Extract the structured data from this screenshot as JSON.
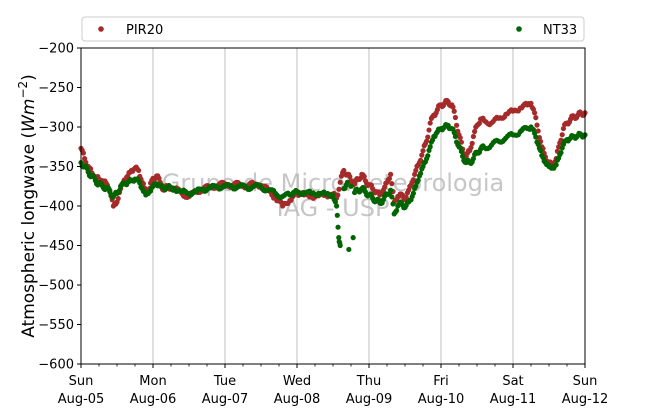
{
  "chart_data": {
    "type": "scatter",
    "ylabel": "Atmospheric longwave (Wm⁻²)",
    "ylim": [
      -600,
      -200
    ],
    "yticks": [
      -200,
      -250,
      -300,
      -350,
      -400,
      -450,
      -500,
      -550,
      -600
    ],
    "xlim": [
      0,
      7
    ],
    "xticks": [
      {
        "day": "Sun",
        "date": "Aug-05"
      },
      {
        "day": "Mon",
        "date": "Aug-06"
      },
      {
        "day": "Tue",
        "date": "Aug-07"
      },
      {
        "day": "Wed",
        "date": "Aug-08"
      },
      {
        "day": "Thu",
        "date": "Aug-09"
      },
      {
        "day": "Fri",
        "date": "Aug-10"
      },
      {
        "day": "Sat",
        "date": "Aug-11"
      },
      {
        "day": "Sun",
        "date": "Aug-12"
      }
    ],
    "grid": "x",
    "legend": "top",
    "watermark": [
      "Grupo de Micrometeorologia",
      "IAG - USP"
    ],
    "series": [
      {
        "name": "PIR20",
        "color": "#a52a2a",
        "points": [
          [
            0.0,
            -327
          ],
          [
            0.05,
            -340
          ],
          [
            0.1,
            -350
          ],
          [
            0.15,
            -358
          ],
          [
            0.2,
            -363
          ],
          [
            0.25,
            -366
          ],
          [
            0.3,
            -368
          ],
          [
            0.35,
            -371
          ],
          [
            0.4,
            -380
          ],
          [
            0.45,
            -400
          ],
          [
            0.5,
            -395
          ],
          [
            0.55,
            -378
          ],
          [
            0.6,
            -367
          ],
          [
            0.65,
            -362
          ],
          [
            0.7,
            -355
          ],
          [
            0.75,
            -352
          ],
          [
            0.8,
            -355
          ],
          [
            0.85,
            -370
          ],
          [
            0.9,
            -383
          ],
          [
            0.95,
            -378
          ],
          [
            1.0,
            -365
          ],
          [
            1.05,
            -362
          ],
          [
            1.1,
            -370
          ],
          [
            1.15,
            -380
          ],
          [
            1.2,
            -375
          ],
          [
            1.3,
            -378
          ],
          [
            1.4,
            -384
          ],
          [
            1.5,
            -388
          ],
          [
            1.6,
            -382
          ],
          [
            1.7,
            -378
          ],
          [
            1.8,
            -376
          ],
          [
            1.9,
            -374
          ],
          [
            2.0,
            -372
          ],
          [
            2.1,
            -374
          ],
          [
            2.2,
            -372
          ],
          [
            2.3,
            -375
          ],
          [
            2.4,
            -372
          ],
          [
            2.5,
            -374
          ],
          [
            2.6,
            -380
          ],
          [
            2.7,
            -390
          ],
          [
            2.8,
            -400
          ],
          [
            2.9,
            -393
          ],
          [
            2.95,
            -387
          ],
          [
            3.0,
            -384
          ],
          [
            3.1,
            -386
          ],
          [
            3.2,
            -388
          ],
          [
            3.3,
            -387
          ],
          [
            3.4,
            -386
          ],
          [
            3.5,
            -385
          ],
          [
            3.55,
            -390
          ],
          [
            3.6,
            -370
          ],
          [
            3.65,
            -355
          ],
          [
            3.7,
            -360
          ],
          [
            3.75,
            -368
          ],
          [
            3.8,
            -372
          ],
          [
            3.85,
            -366
          ],
          [
            3.9,
            -360
          ],
          [
            3.95,
            -368
          ],
          [
            4.0,
            -373
          ],
          [
            4.05,
            -378
          ],
          [
            4.1,
            -382
          ],
          [
            4.15,
            -386
          ],
          [
            4.2,
            -380
          ],
          [
            4.25,
            -370
          ],
          [
            4.3,
            -360
          ],
          [
            4.35,
            -395
          ],
          [
            4.4,
            -388
          ],
          [
            4.45,
            -385
          ],
          [
            4.5,
            -392
          ],
          [
            4.55,
            -380
          ],
          [
            4.6,
            -370
          ],
          [
            4.65,
            -355
          ],
          [
            4.7,
            -345
          ],
          [
            4.75,
            -330
          ],
          [
            4.8,
            -318
          ],
          [
            4.85,
            -295
          ],
          [
            4.9,
            -285
          ],
          [
            4.95,
            -278
          ],
          [
            5.0,
            -272
          ],
          [
            5.05,
            -270
          ],
          [
            5.1,
            -268
          ],
          [
            5.15,
            -272
          ],
          [
            5.2,
            -288
          ],
          [
            5.25,
            -310
          ],
          [
            5.3,
            -328
          ],
          [
            5.35,
            -338
          ],
          [
            5.4,
            -330
          ],
          [
            5.45,
            -312
          ],
          [
            5.5,
            -298
          ],
          [
            5.55,
            -290
          ],
          [
            5.6,
            -292
          ],
          [
            5.7,
            -295
          ],
          [
            5.8,
            -289
          ],
          [
            5.9,
            -284
          ],
          [
            6.0,
            -280
          ],
          [
            6.1,
            -276
          ],
          [
            6.2,
            -272
          ],
          [
            6.25,
            -270
          ],
          [
            6.3,
            -282
          ],
          [
            6.35,
            -305
          ],
          [
            6.4,
            -325
          ],
          [
            6.45,
            -338
          ],
          [
            6.5,
            -346
          ],
          [
            6.55,
            -348
          ],
          [
            6.6,
            -340
          ],
          [
            6.65,
            -320
          ],
          [
            6.7,
            -302
          ],
          [
            6.75,
            -295
          ],
          [
            6.8,
            -290
          ],
          [
            6.85,
            -287
          ],
          [
            6.9,
            -285
          ],
          [
            6.95,
            -283
          ],
          [
            7.0,
            -282
          ]
        ]
      },
      {
        "name": "NT33",
        "color": "#006400",
        "points": [
          [
            0.0,
            -345
          ],
          [
            0.05,
            -350
          ],
          [
            0.1,
            -357
          ],
          [
            0.15,
            -362
          ],
          [
            0.2,
            -368
          ],
          [
            0.25,
            -372
          ],
          [
            0.3,
            -375
          ],
          [
            0.35,
            -377
          ],
          [
            0.4,
            -382
          ],
          [
            0.45,
            -388
          ],
          [
            0.5,
            -384
          ],
          [
            0.55,
            -375
          ],
          [
            0.6,
            -372
          ],
          [
            0.65,
            -370
          ],
          [
            0.7,
            -368
          ],
          [
            0.75,
            -366
          ],
          [
            0.8,
            -368
          ],
          [
            0.85,
            -378
          ],
          [
            0.9,
            -386
          ],
          [
            0.95,
            -382
          ],
          [
            1.0,
            -375
          ],
          [
            1.05,
            -372
          ],
          [
            1.1,
            -374
          ],
          [
            1.15,
            -378
          ],
          [
            1.2,
            -376
          ],
          [
            1.3,
            -378
          ],
          [
            1.4,
            -382
          ],
          [
            1.5,
            -384
          ],
          [
            1.6,
            -382
          ],
          [
            1.7,
            -379
          ],
          [
            1.8,
            -377
          ],
          [
            1.9,
            -376
          ],
          [
            2.0,
            -375
          ],
          [
            2.1,
            -376
          ],
          [
            2.2,
            -375
          ],
          [
            2.3,
            -377
          ],
          [
            2.4,
            -375
          ],
          [
            2.5,
            -376
          ],
          [
            2.6,
            -380
          ],
          [
            2.7,
            -384
          ],
          [
            2.8,
            -388
          ],
          [
            2.9,
            -386
          ],
          [
            2.95,
            -383
          ],
          [
            3.0,
            -382
          ],
          [
            3.1,
            -383
          ],
          [
            3.2,
            -384
          ],
          [
            3.3,
            -384
          ],
          [
            3.4,
            -385
          ],
          [
            3.5,
            -386
          ],
          [
            3.55,
            -400
          ],
          [
            3.58,
            -440
          ],
          [
            3.6,
            -450
          ],
          [
            3.65,
            -378
          ],
          [
            3.7,
            -370
          ],
          [
            3.72,
            -455
          ],
          [
            3.75,
            -375
          ],
          [
            3.78,
            -440
          ],
          [
            3.8,
            -383
          ],
          [
            3.85,
            -380
          ],
          [
            3.9,
            -378
          ],
          [
            3.95,
            -382
          ],
          [
            4.0,
            -386
          ],
          [
            4.05,
            -390
          ],
          [
            4.1,
            -393
          ],
          [
            4.15,
            -396
          ],
          [
            4.2,
            -392
          ],
          [
            4.25,
            -385
          ],
          [
            4.3,
            -380
          ],
          [
            4.35,
            -410
          ],
          [
            4.4,
            -400
          ],
          [
            4.45,
            -396
          ],
          [
            4.5,
            -402
          ],
          [
            4.55,
            -395
          ],
          [
            4.6,
            -388
          ],
          [
            4.65,
            -375
          ],
          [
            4.7,
            -362
          ],
          [
            4.75,
            -350
          ],
          [
            4.8,
            -340
          ],
          [
            4.85,
            -325
          ],
          [
            4.9,
            -312
          ],
          [
            4.95,
            -306
          ],
          [
            5.0,
            -302
          ],
          [
            5.05,
            -300
          ],
          [
            5.1,
            -298
          ],
          [
            5.15,
            -302
          ],
          [
            5.2,
            -312
          ],
          [
            5.25,
            -325
          ],
          [
            5.3,
            -337
          ],
          [
            5.35,
            -345
          ],
          [
            5.4,
            -345
          ],
          [
            5.45,
            -340
          ],
          [
            5.5,
            -332
          ],
          [
            5.55,
            -328
          ],
          [
            5.6,
            -326
          ],
          [
            5.7,
            -323
          ],
          [
            5.8,
            -318
          ],
          [
            5.9,
            -314
          ],
          [
            6.0,
            -310
          ],
          [
            6.1,
            -306
          ],
          [
            6.2,
            -302
          ],
          [
            6.25,
            -300
          ],
          [
            6.3,
            -308
          ],
          [
            6.35,
            -322
          ],
          [
            6.4,
            -336
          ],
          [
            6.45,
            -345
          ],
          [
            6.5,
            -350
          ],
          [
            6.55,
            -352
          ],
          [
            6.6,
            -348
          ],
          [
            6.65,
            -335
          ],
          [
            6.7,
            -322
          ],
          [
            6.75,
            -316
          ],
          [
            6.8,
            -314
          ],
          [
            6.85,
            -312
          ],
          [
            6.9,
            -311
          ],
          [
            6.95,
            -310
          ],
          [
            7.0,
            -310
          ]
        ]
      }
    ]
  }
}
